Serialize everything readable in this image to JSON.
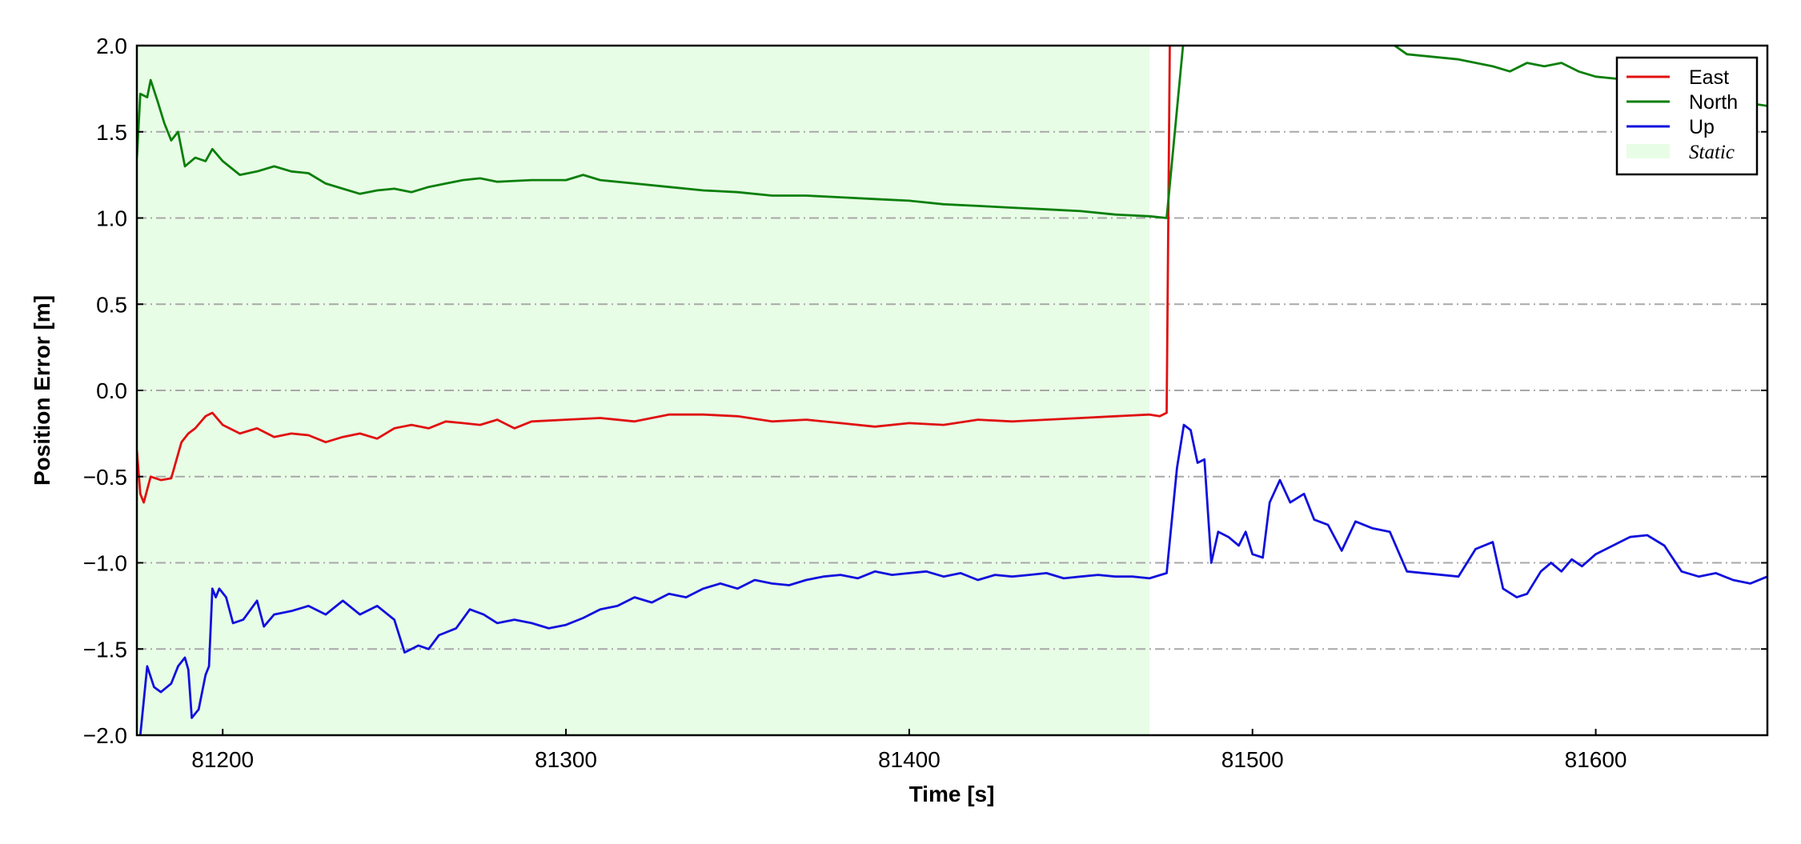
{
  "chart_data": {
    "type": "line",
    "xlabel": "Time [s]",
    "ylabel": "Position Error [m]",
    "xlim": [
      81175,
      81650
    ],
    "ylim": [
      -2.0,
      2.0
    ],
    "x_ticks": [
      81200,
      81300,
      81400,
      81500,
      81600
    ],
    "y_ticks": [
      -2.0,
      -1.5,
      -1.0,
      -0.5,
      0.0,
      0.5,
      1.0,
      1.5,
      2.0
    ],
    "x_tick_labels": [
      "81200",
      "81300",
      "81400",
      "81500",
      "81600"
    ],
    "y_tick_labels": [
      "−2.0",
      "−1.5",
      "−1.0",
      "−0.5",
      "0.0",
      "0.5",
      "1.0",
      "1.5",
      "2.0"
    ],
    "grid": "horizontal dash-dot",
    "legend_position": "top-right",
    "shaded_region": {
      "label": "Static",
      "x_start": 81175,
      "x_end": 81470,
      "color": "#e8fde6"
    },
    "series": [
      {
        "name": "East",
        "color": "#e01010",
        "points": [
          [
            81175,
            -0.35
          ],
          [
            81176,
            -0.6
          ],
          [
            81177,
            -0.65
          ],
          [
            81179,
            -0.5
          ],
          [
            81182,
            -0.52
          ],
          [
            81185,
            -0.51
          ],
          [
            81188,
            -0.3
          ],
          [
            81190,
            -0.25
          ],
          [
            81192,
            -0.22
          ],
          [
            81195,
            -0.15
          ],
          [
            81197,
            -0.13
          ],
          [
            81200,
            -0.2
          ],
          [
            81205,
            -0.25
          ],
          [
            81210,
            -0.22
          ],
          [
            81215,
            -0.27
          ],
          [
            81220,
            -0.25
          ],
          [
            81225,
            -0.26
          ],
          [
            81230,
            -0.3
          ],
          [
            81235,
            -0.27
          ],
          [
            81240,
            -0.25
          ],
          [
            81245,
            -0.28
          ],
          [
            81250,
            -0.22
          ],
          [
            81255,
            -0.2
          ],
          [
            81260,
            -0.22
          ],
          [
            81265,
            -0.18
          ],
          [
            81270,
            -0.19
          ],
          [
            81275,
            -0.2
          ],
          [
            81280,
            -0.17
          ],
          [
            81285,
            -0.22
          ],
          [
            81290,
            -0.18
          ],
          [
            81300,
            -0.17
          ],
          [
            81310,
            -0.16
          ],
          [
            81320,
            -0.18
          ],
          [
            81330,
            -0.14
          ],
          [
            81340,
            -0.14
          ],
          [
            81350,
            -0.15
          ],
          [
            81360,
            -0.18
          ],
          [
            81370,
            -0.17
          ],
          [
            81380,
            -0.19
          ],
          [
            81390,
            -0.21
          ],
          [
            81400,
            -0.19
          ],
          [
            81410,
            -0.2
          ],
          [
            81420,
            -0.17
          ],
          [
            81430,
            -0.18
          ],
          [
            81440,
            -0.17
          ],
          [
            81450,
            -0.16
          ],
          [
            81460,
            -0.15
          ],
          [
            81470,
            -0.14
          ],
          [
            81473,
            -0.15
          ],
          [
            81475,
            -0.13
          ],
          [
            81476,
            2.2
          ]
        ]
      },
      {
        "name": "North",
        "color": "#0a7f0a",
        "points": [
          [
            81175,
            1.35
          ],
          [
            81176,
            1.72
          ],
          [
            81178,
            1.7
          ],
          [
            81179,
            1.8
          ],
          [
            81181,
            1.68
          ],
          [
            81183,
            1.55
          ],
          [
            81185,
            1.45
          ],
          [
            81187,
            1.5
          ],
          [
            81189,
            1.3
          ],
          [
            81192,
            1.35
          ],
          [
            81195,
            1.33
          ],
          [
            81197,
            1.4
          ],
          [
            81200,
            1.33
          ],
          [
            81205,
            1.25
          ],
          [
            81210,
            1.27
          ],
          [
            81215,
            1.3
          ],
          [
            81220,
            1.27
          ],
          [
            81225,
            1.26
          ],
          [
            81230,
            1.2
          ],
          [
            81235,
            1.17
          ],
          [
            81240,
            1.14
          ],
          [
            81245,
            1.16
          ],
          [
            81250,
            1.17
          ],
          [
            81255,
            1.15
          ],
          [
            81260,
            1.18
          ],
          [
            81265,
            1.2
          ],
          [
            81270,
            1.22
          ],
          [
            81275,
            1.23
          ],
          [
            81280,
            1.21
          ],
          [
            81290,
            1.22
          ],
          [
            81300,
            1.22
          ],
          [
            81305,
            1.25
          ],
          [
            81310,
            1.22
          ],
          [
            81320,
            1.2
          ],
          [
            81330,
            1.18
          ],
          [
            81340,
            1.16
          ],
          [
            81350,
            1.15
          ],
          [
            81360,
            1.13
          ],
          [
            81370,
            1.13
          ],
          [
            81380,
            1.12
          ],
          [
            81390,
            1.11
          ],
          [
            81400,
            1.1
          ],
          [
            81410,
            1.08
          ],
          [
            81420,
            1.07
          ],
          [
            81430,
            1.06
          ],
          [
            81440,
            1.05
          ],
          [
            81450,
            1.04
          ],
          [
            81460,
            1.02
          ],
          [
            81470,
            1.01
          ],
          [
            81475,
            1.0
          ],
          [
            81480,
            2.05
          ],
          [
            81540,
            2.02
          ],
          [
            81545,
            1.95
          ],
          [
            81560,
            1.92
          ],
          [
            81570,
            1.88
          ],
          [
            81575,
            1.85
          ],
          [
            81580,
            1.9
          ],
          [
            81585,
            1.88
          ],
          [
            81590,
            1.9
          ],
          [
            81595,
            1.85
          ],
          [
            81600,
            1.82
          ],
          [
            81610,
            1.8
          ],
          [
            81620,
            1.75
          ],
          [
            81630,
            1.72
          ],
          [
            81640,
            1.68
          ],
          [
            81650,
            1.65
          ]
        ]
      },
      {
        "name": "Up",
        "color": "#1010dd",
        "points": [
          [
            81176,
            -2.0
          ],
          [
            81178,
            -1.6
          ],
          [
            81180,
            -1.72
          ],
          [
            81182,
            -1.75
          ],
          [
            81185,
            -1.7
          ],
          [
            81187,
            -1.6
          ],
          [
            81189,
            -1.55
          ],
          [
            81190,
            -1.62
          ],
          [
            81191,
            -1.9
          ],
          [
            81193,
            -1.85
          ],
          [
            81195,
            -1.65
          ],
          [
            81196,
            -1.6
          ],
          [
            81197,
            -1.15
          ],
          [
            81198,
            -1.2
          ],
          [
            81199,
            -1.15
          ],
          [
            81201,
            -1.2
          ],
          [
            81203,
            -1.35
          ],
          [
            81206,
            -1.33
          ],
          [
            81210,
            -1.22
          ],
          [
            81212,
            -1.37
          ],
          [
            81215,
            -1.3
          ],
          [
            81220,
            -1.28
          ],
          [
            81225,
            -1.25
          ],
          [
            81230,
            -1.3
          ],
          [
            81235,
            -1.22
          ],
          [
            81240,
            -1.3
          ],
          [
            81245,
            -1.25
          ],
          [
            81250,
            -1.33
          ],
          [
            81253,
            -1.52
          ],
          [
            81257,
            -1.48
          ],
          [
            81260,
            -1.5
          ],
          [
            81263,
            -1.42
          ],
          [
            81268,
            -1.38
          ],
          [
            81272,
            -1.27
          ],
          [
            81276,
            -1.3
          ],
          [
            81280,
            -1.35
          ],
          [
            81285,
            -1.33
          ],
          [
            81290,
            -1.35
          ],
          [
            81295,
            -1.38
          ],
          [
            81300,
            -1.36
          ],
          [
            81305,
            -1.32
          ],
          [
            81310,
            -1.27
          ],
          [
            81315,
            -1.25
          ],
          [
            81320,
            -1.2
          ],
          [
            81325,
            -1.23
          ],
          [
            81330,
            -1.18
          ],
          [
            81335,
            -1.2
          ],
          [
            81340,
            -1.15
          ],
          [
            81345,
            -1.12
          ],
          [
            81350,
            -1.15
          ],
          [
            81355,
            -1.1
          ],
          [
            81360,
            -1.12
          ],
          [
            81365,
            -1.13
          ],
          [
            81370,
            -1.1
          ],
          [
            81375,
            -1.08
          ],
          [
            81380,
            -1.07
          ],
          [
            81385,
            -1.09
          ],
          [
            81390,
            -1.05
          ],
          [
            81395,
            -1.07
          ],
          [
            81400,
            -1.06
          ],
          [
            81405,
            -1.05
          ],
          [
            81410,
            -1.08
          ],
          [
            81415,
            -1.06
          ],
          [
            81420,
            -1.1
          ],
          [
            81425,
            -1.07
          ],
          [
            81430,
            -1.08
          ],
          [
            81435,
            -1.07
          ],
          [
            81440,
            -1.06
          ],
          [
            81445,
            -1.09
          ],
          [
            81450,
            -1.08
          ],
          [
            81455,
            -1.07
          ],
          [
            81460,
            -1.08
          ],
          [
            81465,
            -1.08
          ],
          [
            81470,
            -1.09
          ],
          [
            81475,
            -1.06
          ],
          [
            81478,
            -0.45
          ],
          [
            81480,
            -0.2
          ],
          [
            81482,
            -0.23
          ],
          [
            81484,
            -0.42
          ],
          [
            81486,
            -0.4
          ],
          [
            81488,
            -1.0
          ],
          [
            81490,
            -0.82
          ],
          [
            81493,
            -0.85
          ],
          [
            81496,
            -0.9
          ],
          [
            81498,
            -0.82
          ],
          [
            81500,
            -0.95
          ],
          [
            81503,
            -0.97
          ],
          [
            81505,
            -0.65
          ],
          [
            81508,
            -0.52
          ],
          [
            81511,
            -0.65
          ],
          [
            81515,
            -0.6
          ],
          [
            81518,
            -0.75
          ],
          [
            81522,
            -0.78
          ],
          [
            81526,
            -0.93
          ],
          [
            81530,
            -0.76
          ],
          [
            81535,
            -0.8
          ],
          [
            81540,
            -0.82
          ],
          [
            81545,
            -1.05
          ],
          [
            81560,
            -1.08
          ],
          [
            81565,
            -0.92
          ],
          [
            81570,
            -0.88
          ],
          [
            81573,
            -1.15
          ],
          [
            81577,
            -1.2
          ],
          [
            81580,
            -1.18
          ],
          [
            81584,
            -1.05
          ],
          [
            81587,
            -1.0
          ],
          [
            81590,
            -1.05
          ],
          [
            81593,
            -0.98
          ],
          [
            81596,
            -1.02
          ],
          [
            81600,
            -0.95
          ],
          [
            81605,
            -0.9
          ],
          [
            81610,
            -0.85
          ],
          [
            81615,
            -0.84
          ],
          [
            81620,
            -0.9
          ],
          [
            81625,
            -1.05
          ],
          [
            81630,
            -1.08
          ],
          [
            81635,
            -1.06
          ],
          [
            81640,
            -1.1
          ],
          [
            81645,
            -1.12
          ],
          [
            81650,
            -1.08
          ]
        ]
      }
    ]
  }
}
